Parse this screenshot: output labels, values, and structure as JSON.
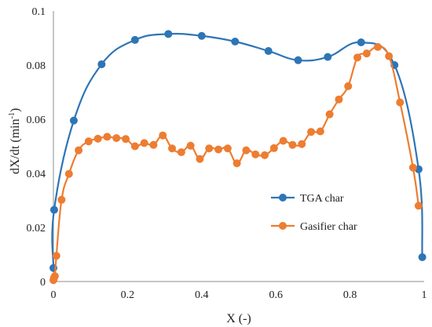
{
  "chart_data": {
    "type": "line",
    "xlabel": "X (-)",
    "ylabel": "dX/dt (min",
    "ylabel_sup": "-1",
    "ylabel_tail": ")",
    "xlim": [
      0,
      1
    ],
    "ylim": [
      0,
      0.1
    ],
    "xticks": [
      0,
      0.2,
      0.4,
      0.6,
      0.8,
      1
    ],
    "xtick_labels": [
      "0",
      "0.2",
      "0.4",
      "0.6",
      "0.8",
      "1"
    ],
    "yticks": [
      0,
      0.02,
      0.04,
      0.06,
      0.08,
      0.1
    ],
    "ytick_labels": [
      "0",
      "0.02",
      "0.04",
      "0.06",
      "0.08",
      "0.1"
    ],
    "grid": false,
    "legend_position": "right-center",
    "series": [
      {
        "name": "TGA char",
        "color": "#2E75B6",
        "points": [
          [
            0.0,
            0.005
          ],
          [
            0.002,
            0.0265
          ],
          [
            0.055,
            0.0595
          ],
          [
            0.13,
            0.0803
          ],
          [
            0.22,
            0.0893
          ],
          [
            0.31,
            0.0915
          ],
          [
            0.4,
            0.0908
          ],
          [
            0.49,
            0.0887
          ],
          [
            0.58,
            0.0852
          ],
          [
            0.66,
            0.0818
          ],
          [
            0.74,
            0.083
          ],
          [
            0.83,
            0.0884
          ],
          [
            0.92,
            0.08
          ],
          [
            0.985,
            0.0415
          ],
          [
            0.995,
            0.009
          ]
        ]
      },
      {
        "name": "Gasifier char",
        "color": "#ED7D31",
        "points": [
          [
            0.0,
            0.0005
          ],
          [
            0.001,
            0.001
          ],
          [
            0.002,
            0.0015
          ],
          [
            0.004,
            0.002
          ],
          [
            0.008,
            0.0095
          ],
          [
            0.022,
            0.0302
          ],
          [
            0.042,
            0.0398
          ],
          [
            0.068,
            0.0485
          ],
          [
            0.095,
            0.0518
          ],
          [
            0.12,
            0.0528
          ],
          [
            0.145,
            0.0535
          ],
          [
            0.17,
            0.053
          ],
          [
            0.195,
            0.0527
          ],
          [
            0.22,
            0.05
          ],
          [
            0.245,
            0.0512
          ],
          [
            0.27,
            0.0505
          ],
          [
            0.295,
            0.054
          ],
          [
            0.32,
            0.0492
          ],
          [
            0.345,
            0.0478
          ],
          [
            0.37,
            0.0502
          ],
          [
            0.395,
            0.0453
          ],
          [
            0.42,
            0.0492
          ],
          [
            0.445,
            0.0488
          ],
          [
            0.47,
            0.0492
          ],
          [
            0.495,
            0.0437
          ],
          [
            0.52,
            0.0485
          ],
          [
            0.545,
            0.047
          ],
          [
            0.57,
            0.0467
          ],
          [
            0.595,
            0.0493
          ],
          [
            0.62,
            0.052
          ],
          [
            0.645,
            0.0505
          ],
          [
            0.67,
            0.0508
          ],
          [
            0.695,
            0.0553
          ],
          [
            0.72,
            0.0555
          ],
          [
            0.745,
            0.0618
          ],
          [
            0.77,
            0.0673
          ],
          [
            0.795,
            0.0722
          ],
          [
            0.82,
            0.0828
          ],
          [
            0.845,
            0.0843
          ],
          [
            0.875,
            0.0867
          ],
          [
            0.905,
            0.0833
          ],
          [
            0.935,
            0.0662
          ],
          [
            0.97,
            0.0421
          ],
          [
            0.985,
            0.028
          ]
        ]
      }
    ]
  }
}
